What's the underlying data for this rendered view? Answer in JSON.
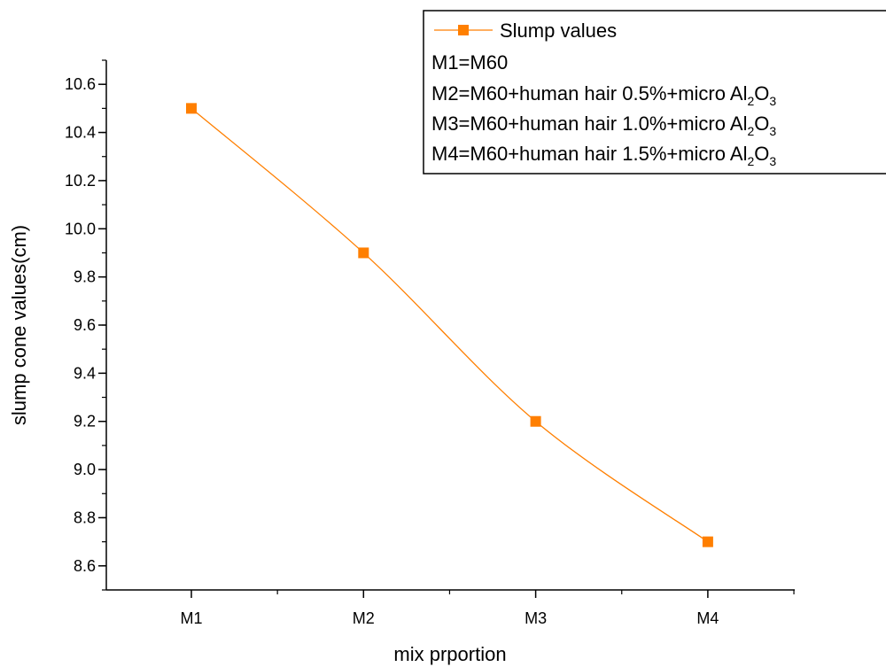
{
  "chart_data": {
    "type": "line",
    "xlabel": "mix prportion",
    "ylabel": "slump cone values(cm)",
    "categories": [
      "M1",
      "M2",
      "M3",
      "M4"
    ],
    "ylim": [
      8.5,
      10.7
    ],
    "yticks": [
      "8.6",
      "8.8",
      "9.0",
      "9.2",
      "9.4",
      "9.6",
      "9.8",
      "10.0",
      "10.2",
      "10.4",
      "10.6"
    ],
    "grid": false,
    "smooth": true,
    "legend_position": "top-right",
    "series": [
      {
        "name": "Slump values",
        "values": [
          10.5,
          9.9,
          9.2,
          8.7
        ],
        "color": "#ff7f00",
        "marker": "square"
      }
    ],
    "annotations": [
      {
        "prefix": "M1=M60",
        "metal": "",
        "sub1": "",
        "oxygen": "",
        "sub2": ""
      },
      {
        "prefix": "M2=M60+human hair 0.5%+micro ",
        "metal": "Al",
        "sub1": "2",
        "oxygen": "O",
        "sub2": "3"
      },
      {
        "prefix": "M3=M60+human hair 1.0%+micro ",
        "metal": "Al",
        "sub1": "2",
        "oxygen": "O",
        "sub2": "3"
      },
      {
        "prefix": "M4=M60+human hair 1.5%+micro ",
        "metal": "Al",
        "sub1": "2",
        "oxygen": "O",
        "sub2": "3"
      }
    ]
  }
}
